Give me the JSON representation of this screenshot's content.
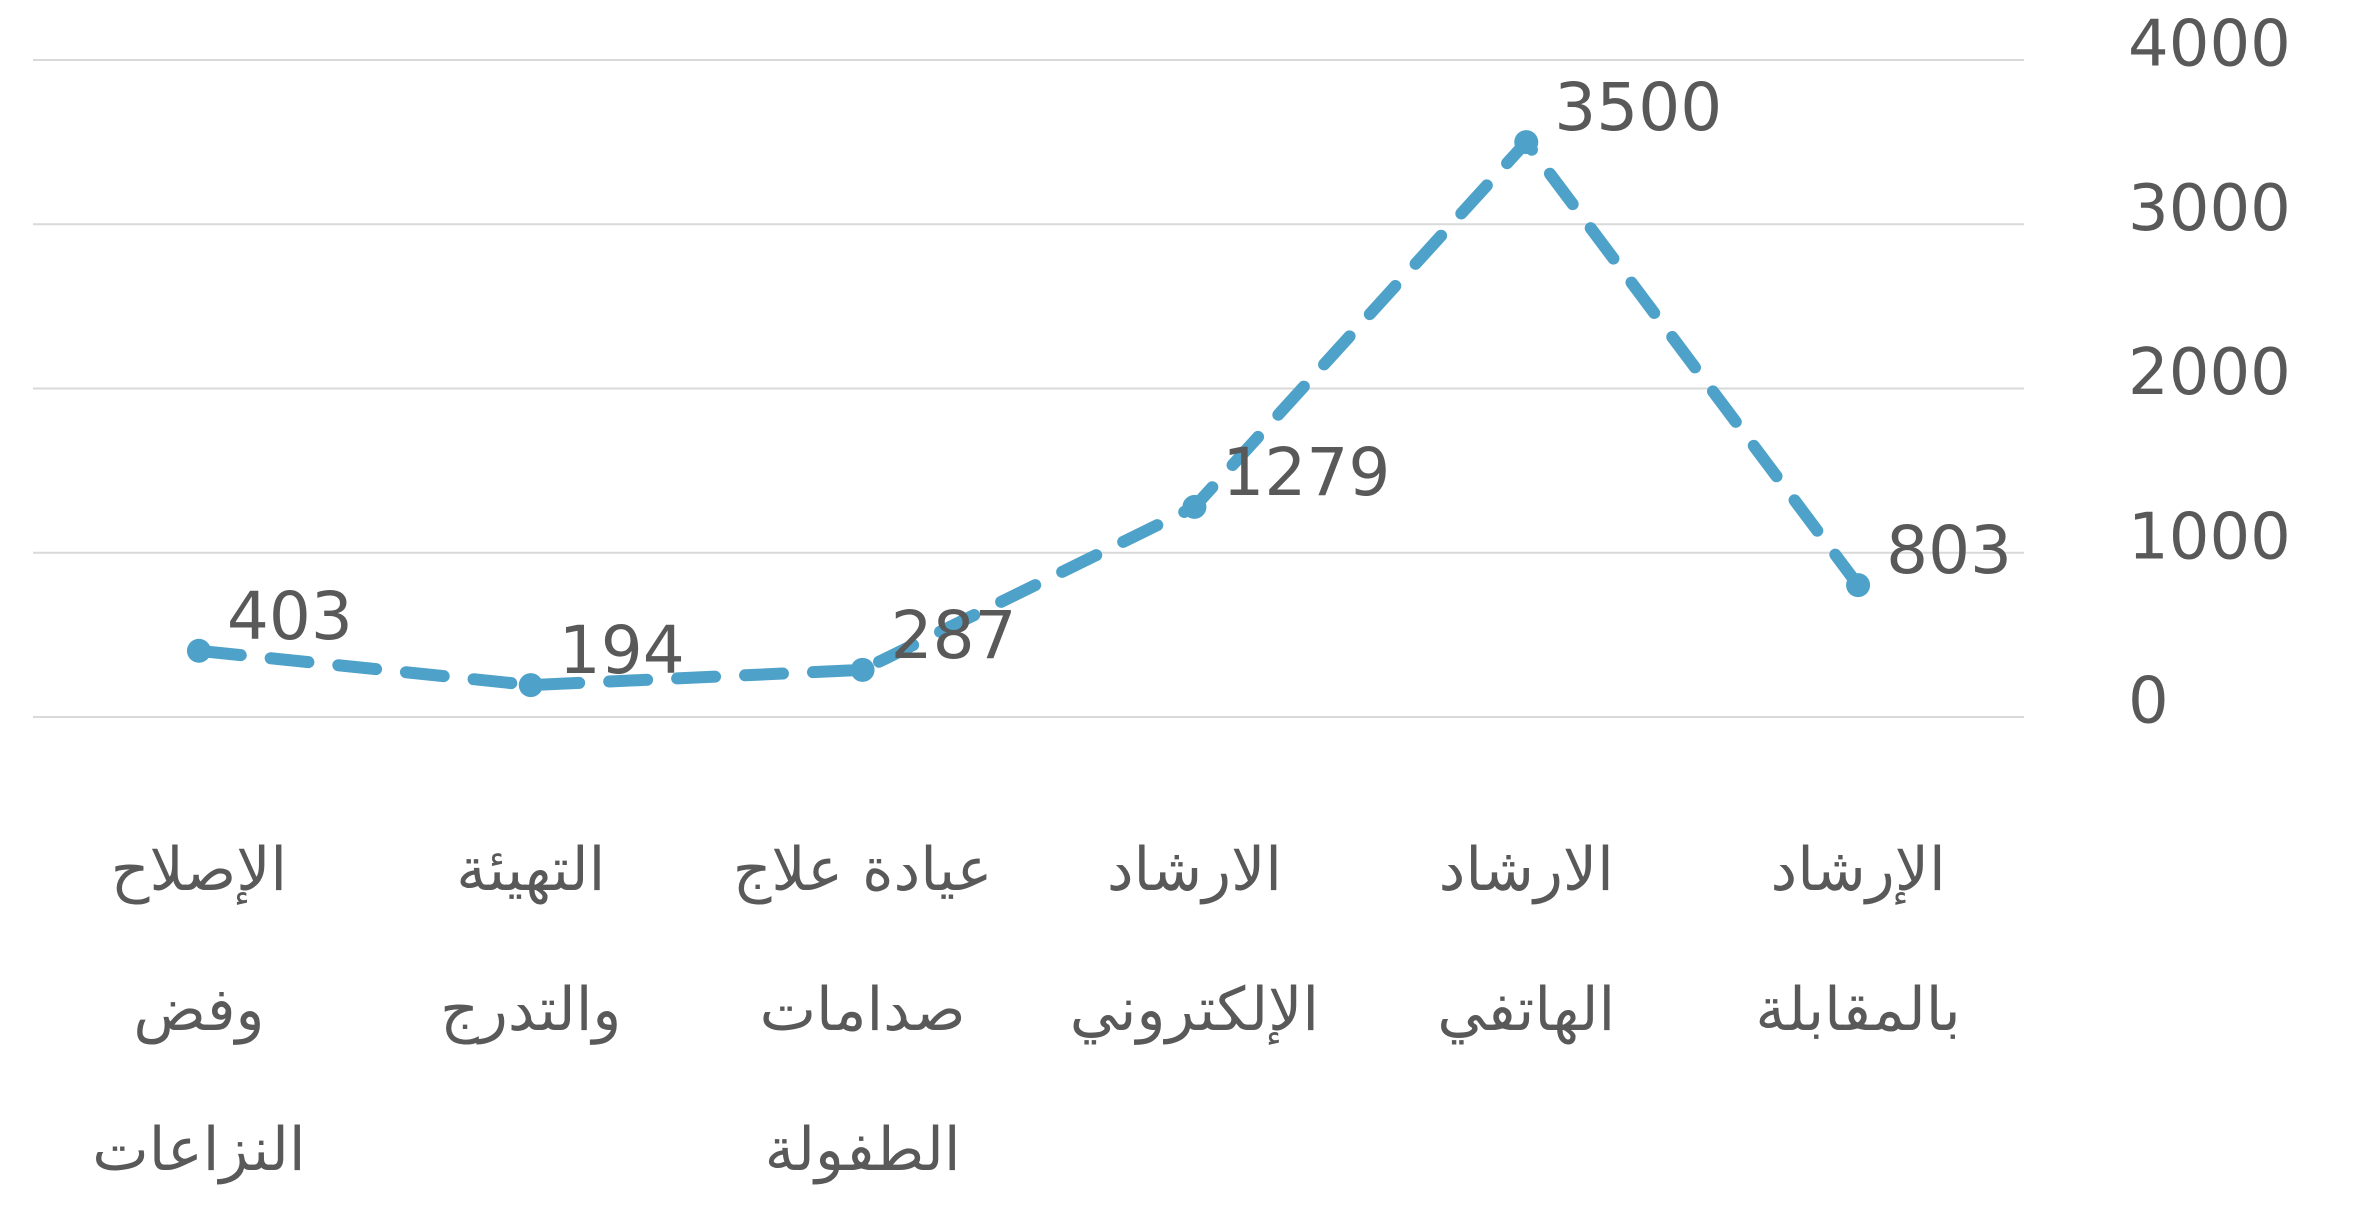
{
  "chart_data": {
    "type": "line",
    "categories": [
      "الإرشاد بالمقابلة",
      "الارشاد الهاتفي",
      "الارشاد الإلكتروني",
      "عيادة علاج صدامات الطفولة",
      "التهيئة والتدرج",
      "الإصلاح وفض النزاعات"
    ],
    "values": [
      803,
      3500,
      1279,
      287,
      194,
      403
    ],
    "color": "#4ea1c8",
    "ylim": [
      0,
      4000
    ],
    "yticks": [
      0,
      1000,
      2000,
      3000,
      4000
    ],
    "grid": true,
    "rtl": true,
    "dashed": true
  }
}
